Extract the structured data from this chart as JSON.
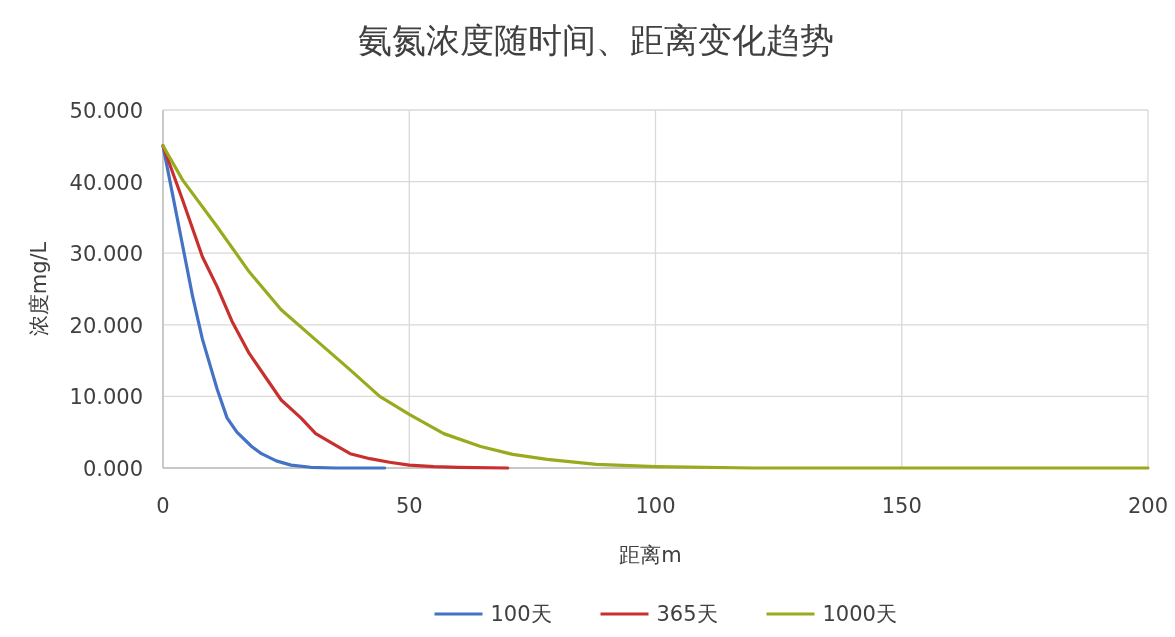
{
  "chart_data": {
    "type": "line",
    "title": "氨氮浓度随时间、距离变化趋势",
    "xlabel": "距离m",
    "ylabel": "浓度mg/L",
    "xlim": [
      0,
      200
    ],
    "xticks": [
      0,
      50,
      100,
      150,
      200
    ],
    "ylim": [
      0,
      50
    ],
    "yticks": [
      {
        "value": 0,
        "label": "0.000"
      },
      {
        "value": 10,
        "label": "10.000"
      },
      {
        "value": 20,
        "label": "20.000"
      },
      {
        "value": 30,
        "label": "30.000"
      },
      {
        "value": 40,
        "label": "40.000"
      },
      {
        "value": 50,
        "label": "50.000"
      }
    ],
    "grid": true,
    "legend": "bottom",
    "marker": "none",
    "line_style": "solid",
    "series": [
      {
        "name": "100天",
        "color": "#4472c4",
        "x": [
          0,
          2,
          4,
          6,
          8,
          11,
          13,
          15,
          18,
          20,
          23,
          26,
          30,
          35,
          45
        ],
        "values": [
          45,
          38,
          31,
          24,
          18,
          11,
          7,
          5,
          3,
          2,
          1,
          0.4,
          0.1,
          0,
          0
        ]
      },
      {
        "name": "365天",
        "color": "#c8302e",
        "x": [
          0,
          4,
          8,
          11,
          14,
          17.5,
          21,
          24,
          28,
          31,
          35,
          38,
          42,
          46,
          50,
          55,
          60,
          70
        ],
        "values": [
          45,
          37.4,
          29.5,
          25.3,
          20.5,
          16,
          12.5,
          9.5,
          7,
          4.8,
          3.2,
          2,
          1.3,
          0.8,
          0.4,
          0.2,
          0.1,
          0
        ]
      },
      {
        "name": "1000天",
        "color": "#9aaa1e",
        "x": [
          0,
          4,
          11,
          17.5,
          24,
          31,
          38,
          44,
          50,
          57,
          64.5,
          71,
          78,
          88,
          100,
          120,
          150,
          200
        ],
        "values": [
          45,
          40.2,
          33.7,
          27.4,
          22.1,
          17.9,
          13.7,
          10,
          7.5,
          4.8,
          3,
          1.9,
          1.2,
          0.5,
          0.2,
          0,
          0,
          0
        ]
      }
    ]
  }
}
